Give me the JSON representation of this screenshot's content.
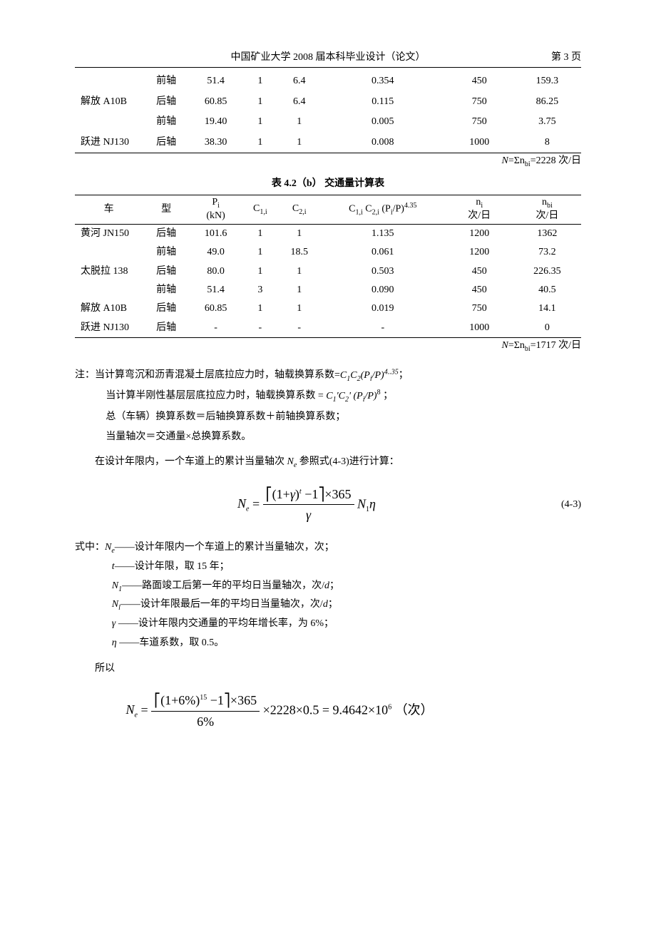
{
  "header": {
    "center": "中国矿业大学 2008 届本科毕业设计（论文）",
    "page": "第 3 页"
  },
  "table1": {
    "rows": [
      {
        "vehicle": "",
        "axle": "前轴",
        "pi": "51.4",
        "c1": "1",
        "c2": "6.4",
        "coef": "0.354",
        "ni": "450",
        "nbi": "159.3"
      },
      {
        "vehicle": "解放 A10B",
        "axle": "后轴",
        "pi": "60.85",
        "c1": "1",
        "c2": "6.4",
        "coef": "0.115",
        "ni": "750",
        "nbi": "86.25"
      },
      {
        "vehicle": "",
        "axle": "前轴",
        "pi": "19.40",
        "c1": "1",
        "c2": "1",
        "coef": "0.005",
        "ni": "750",
        "nbi": "3.75"
      },
      {
        "vehicle": "跃进 NJ130",
        "axle": "后轴",
        "pi": "38.30",
        "c1": "1",
        "c2": "1",
        "coef": "0.008",
        "ni": "1000",
        "nbi": "8"
      }
    ],
    "sum_note": "N=Σnbi=2228 次/日"
  },
  "table2": {
    "caption": "表 4.2（b）  交通量计算表",
    "headers": {
      "col1": "车",
      "col2": "型",
      "col3_top": "Pi",
      "col3_bot": "(kN)",
      "col4": "C1,i",
      "col5": "C2,i",
      "col6": "C1,i C2,i (Pi/P)4.35",
      "col7_top": "ni",
      "col7_bot": "次/日",
      "col8_top": "nbi",
      "col8_bot": "次/日"
    },
    "rows": [
      {
        "vehicle": "黄河 JN150",
        "axle": "后轴",
        "pi": "101.6",
        "c1": "1",
        "c2": "1",
        "coef": "1.135",
        "ni": "1200",
        "nbi": "1362"
      },
      {
        "vehicle": "",
        "axle": "前轴",
        "pi": "49.0",
        "c1": "1",
        "c2": "18.5",
        "coef": "0.061",
        "ni": "1200",
        "nbi": "73.2"
      },
      {
        "vehicle": "太脱拉 138",
        "axle": "后轴",
        "pi": "80.0",
        "c1": "1",
        "c2": "1",
        "coef": "0.503",
        "ni": "450",
        "nbi": "226.35"
      },
      {
        "vehicle": "",
        "axle": "前轴",
        "pi": "51.4",
        "c1": "3",
        "c2": "1",
        "coef": "0.090",
        "ni": "450",
        "nbi": "40.5"
      },
      {
        "vehicle": "解放 A10B",
        "axle": "后轴",
        "pi": "60.85",
        "c1": "1",
        "c2": "1",
        "coef": "0.019",
        "ni": "750",
        "nbi": "14.1"
      },
      {
        "vehicle": "跃进 NJ130",
        "axle": "后轴",
        "pi": "-",
        "c1": "-",
        "c2": "-",
        "coef": "-",
        "ni": "1000",
        "nbi": "0"
      }
    ],
    "sum_note": "N=Σnbi=1717 次/日"
  },
  "notes": {
    "l1": "注：当计算弯沉和沥青混凝土层底拉应力时，轴载换算系数=C1C2(Pi/P)4..35；",
    "l2": "当计算半刚性基层层底拉应力时，轴载换算系数 = C1'C2'(Pi/P)8 ；",
    "l3": "总（车辆）换算系数＝后轴换算系数＋前轴换算系数；",
    "l4": "当量轴次＝交通量×总换算系数。"
  },
  "para1": "在设计年限内，一个车道上的累计当量轴次 Ne 参照式(4-3)进行计算：",
  "formula": {
    "num": "(4-3)"
  },
  "defs": {
    "head": "式中：Ne——设计年限内一个车道上的累计当量轴次，次；",
    "d1": "t——设计年限，取 15 年；",
    "d2": "N1——路面竣工后第一年的平均日当量轴次，次/d；",
    "d3": "Nl——设计年限最后一年的平均日当量轴次，次/d；",
    "d4": "γ ——设计年限内交通量的平均年增长率，为 6%；",
    "d5": "η ——车道系数，取 0.5。"
  },
  "therefore_label": "所以",
  "result_tail": "×2228×0.5 = 9.4642×10⁶ （次）"
}
